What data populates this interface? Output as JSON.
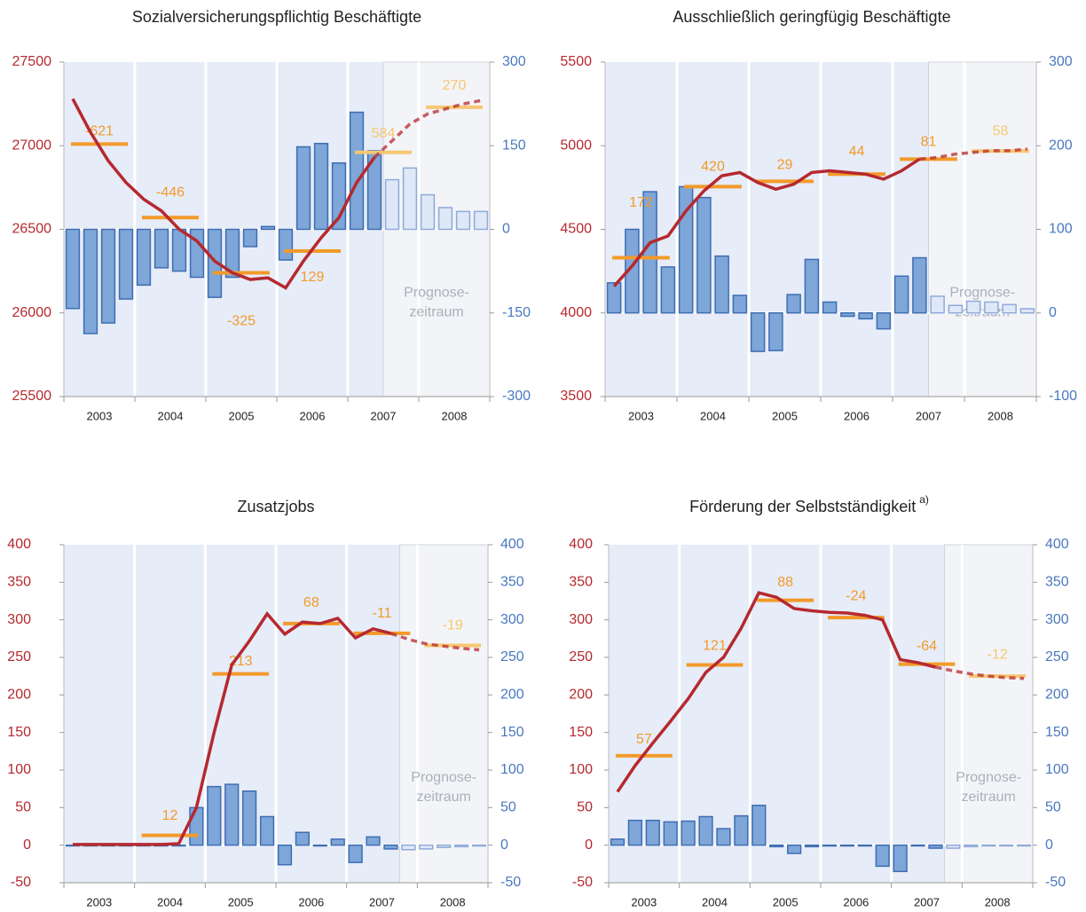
{
  "chart_data": [
    {
      "type": "combo",
      "title": "Sozialversicherungspflichtig Beschäftigte",
      "categories": [
        "2003",
        "2004",
        "2005",
        "2006",
        "2007",
        "2008"
      ],
      "ylim": [
        25500,
        27500
      ],
      "yticks": [
        25500,
        26000,
        26500,
        27000,
        27500
      ],
      "y2lim": [
        -300,
        300
      ],
      "y2ticks": [
        -300,
        -150,
        0,
        150,
        300
      ],
      "bars": {
        "axis": "y2",
        "color": "#7ea6d8",
        "forecast_color": "#dfe8f6",
        "values": [
          -142,
          -187,
          -168,
          -125,
          -100,
          -69,
          -75,
          -86,
          -122,
          -86,
          -31,
          5,
          -55,
          148,
          154,
          119,
          210,
          141,
          89,
          110,
          62,
          39,
          32,
          32
        ]
      },
      "line": {
        "color": "#b5292f",
        "values": [
          27280,
          27080,
          26910,
          26780,
          26680,
          26610,
          26500,
          26430,
          26310,
          26240,
          26200,
          26210,
          26150,
          26310,
          26450,
          26570,
          26780,
          26930,
          27030,
          27130,
          27190,
          27220,
          27250,
          27270
        ]
      },
      "annual_levels": [
        27010,
        26570,
        26240,
        26370,
        26960,
        27230
      ],
      "annual_changes": [
        -621,
        -446,
        -325,
        129,
        584,
        270
      ],
      "annual_colors": [
        "#f39a2a",
        "#f39a2a",
        "#f39a2a",
        "#f39a2a",
        "#f6c773",
        "#f6c773"
      ],
      "forecast_start": 18,
      "forecast_label": [
        "Prognose-",
        "zeitraum"
      ]
    },
    {
      "type": "combo",
      "title": "Ausschließlich geringfügig Beschäftigte",
      "categories": [
        "2003",
        "2004",
        "2005",
        "2006",
        "2007",
        "2008"
      ],
      "ylim": [
        3500,
        5500
      ],
      "yticks": [
        3500,
        4000,
        4500,
        5000,
        5500
      ],
      "y2lim": [
        -100,
        300
      ],
      "y2ticks": [
        -100,
        0,
        100,
        200,
        300
      ],
      "bars": {
        "axis": "y2",
        "color": "#7ea6d8",
        "forecast_color": "#dfe8f6",
        "values": [
          36,
          100,
          145,
          55,
          151,
          138,
          68,
          21,
          -46,
          -45,
          22,
          64,
          13,
          -4,
          -7,
          -19,
          44,
          66,
          20,
          9,
          14,
          13,
          10,
          5
        ]
      },
      "line": {
        "color": "#b5292f",
        "values": [
          4160,
          4280,
          4420,
          4460,
          4610,
          4730,
          4820,
          4840,
          4780,
          4740,
          4770,
          4840,
          4850,
          4840,
          4830,
          4800,
          4850,
          4920,
          4930,
          4950,
          4960,
          4970,
          4970,
          4980
        ]
      },
      "annual_levels": [
        4330,
        4755,
        4787,
        4830,
        4920,
        4968
      ],
      "annual_changes": [
        172,
        420,
        29,
        44,
        81,
        58
      ],
      "annual_colors": [
        "#f39a2a",
        "#f39a2a",
        "#f39a2a",
        "#f39a2a",
        "#f39a2a",
        "#f6c773"
      ],
      "forecast_start": 18,
      "forecast_label": [
        "Prognose-",
        "zeitraum"
      ]
    },
    {
      "type": "combo",
      "title": "Zusatzjobs",
      "categories": [
        "2003",
        "2004",
        "2005",
        "2006",
        "2007",
        "2008"
      ],
      "ylim": [
        -50,
        400
      ],
      "yticks": [
        -50,
        0,
        50,
        100,
        150,
        200,
        250,
        300,
        350,
        400
      ],
      "y2lim": [
        -50,
        400
      ],
      "y2ticks": [
        -50,
        0,
        50,
        100,
        150,
        200,
        250,
        300,
        350,
        400
      ],
      "bars": {
        "axis": "y2",
        "color": "#7ea6d8",
        "forecast_color": "#dfe8f6",
        "values": [
          0,
          0,
          0,
          0,
          0,
          0,
          0,
          50,
          78,
          81,
          72,
          38,
          -26,
          17,
          -1,
          8,
          -23,
          11,
          -5,
          -6,
          -5,
          -3,
          -2,
          -1
        ]
      },
      "line": {
        "color": "#b5292f",
        "values": [
          1,
          1,
          1,
          1,
          1,
          1,
          2,
          50,
          150,
          240,
          272,
          308,
          281,
          297,
          295,
          302,
          276,
          288,
          282,
          274,
          268,
          265,
          262,
          260
        ]
      },
      "annual_levels": [
        null,
        13,
        228,
        295,
        282,
        266
      ],
      "annual_changes": [
        null,
        12,
        213,
        68,
        -11,
        -19
      ],
      "annual_colors": [
        "#f39a2a",
        "#f39a2a",
        "#f39a2a",
        "#f39a2a",
        "#f39a2a",
        "#f6c773"
      ],
      "forecast_start": 19,
      "forecast_label": [
        "Prognose-",
        "zeitraum"
      ]
    },
    {
      "type": "combo",
      "title": "Förderung der Selbstständigkeit",
      "title_note": "a)",
      "categories": [
        "2003",
        "2004",
        "2005",
        "2006",
        "2007",
        "2008"
      ],
      "ylim": [
        -50,
        400
      ],
      "yticks": [
        -50,
        0,
        50,
        100,
        150,
        200,
        250,
        300,
        350,
        400
      ],
      "y2lim": [
        -50,
        400
      ],
      "y2ticks": [
        -50,
        0,
        50,
        100,
        150,
        200,
        250,
        300,
        350,
        400
      ],
      "bars": {
        "axis": "y2",
        "color": "#7ea6d8",
        "forecast_color": "#dfe8f6",
        "values": [
          8,
          33,
          33,
          31,
          32,
          38,
          22,
          39,
          53,
          -2,
          -11,
          -2,
          -1,
          -1,
          -1,
          -28,
          -35,
          0,
          -4,
          -4,
          -2,
          0,
          0,
          0
        ]
      },
      "line": {
        "color": "#b5292f",
        "values": [
          71,
          106,
          136,
          165,
          195,
          230,
          250,
          289,
          336,
          330,
          315,
          312,
          310,
          309,
          306,
          300,
          247,
          243,
          237,
          232,
          228,
          225,
          223,
          222
        ]
      },
      "annual_levels": [
        119,
        240,
        326,
        303,
        241,
        225
      ],
      "annual_changes": [
        57,
        121,
        88,
        -24,
        -64,
        -12
      ],
      "annual_colors": [
        "#f39a2a",
        "#f39a2a",
        "#f39a2a",
        "#f39a2a",
        "#f39a2a",
        "#f6c773"
      ],
      "forecast_start": 19,
      "forecast_label": [
        "Prognose-",
        "zeitraum"
      ]
    }
  ]
}
